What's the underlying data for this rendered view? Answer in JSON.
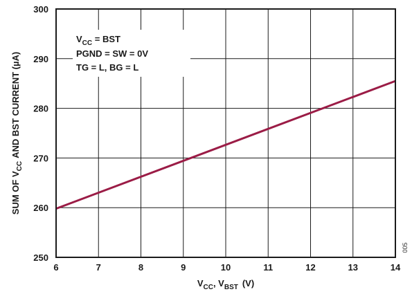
{
  "chart_data": {
    "type": "line",
    "xlabel": {
      "main1": "V",
      "sub1": "CC",
      "main2": ", V",
      "sub2": "BST",
      "unit": "(V)"
    },
    "ylabel": {
      "main1": "SUM OF V",
      "sub1": "CC",
      "main2": "AND BST CURRENT (µA)"
    },
    "xlim": [
      6,
      14
    ],
    "ylim": [
      250,
      300
    ],
    "x_ticks": [
      "6",
      "7",
      "8",
      "9",
      "10",
      "11",
      "12",
      "13",
      "14"
    ],
    "y_ticks": [
      "250",
      "260",
      "270",
      "280",
      "290",
      "300"
    ],
    "grid": true,
    "series": [
      {
        "x": [
          6,
          14
        ],
        "y": [
          259.8,
          285.5
        ],
        "color": "#9b1c46"
      }
    ],
    "annotations": {
      "line1": {
        "main": "V",
        "sub": "CC",
        "rest": " = BST"
      },
      "line2": "PGND = SW = 0V",
      "line3": "TG = L, BG = L"
    },
    "figure_code": "005"
  },
  "colors": {
    "line": "#9b1c46",
    "grid": "#1a1a1a",
    "frame": "#1a1a1a"
  }
}
